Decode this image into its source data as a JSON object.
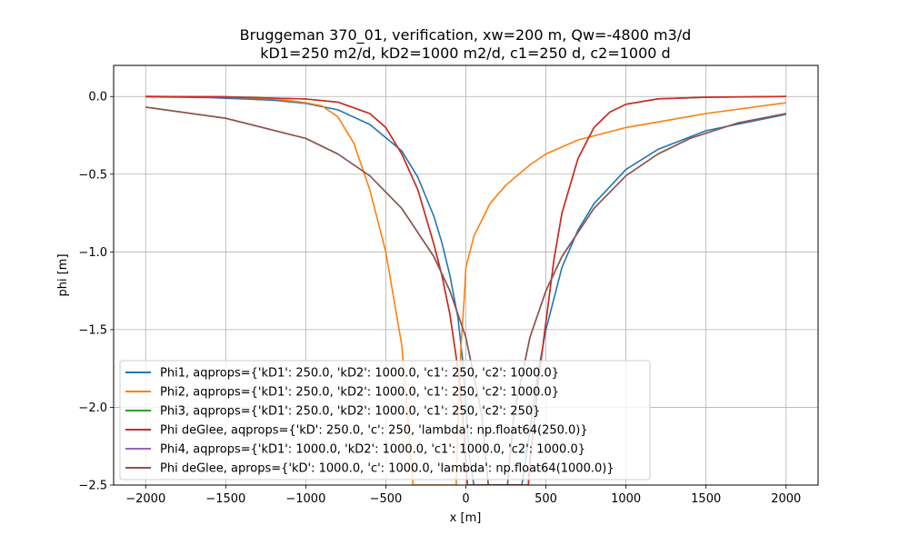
{
  "chart_data": {
    "type": "line",
    "title": "Bruggeman 370_01, verification, xw=200 m, Qw=-4800 m3/d",
    "subtitle": "kD1=250 m2/d, kD2=1000 m2/d, c1=250 d, c2=1000 d",
    "xlabel": "x [m]",
    "ylabel": "phi [m]",
    "xlim": [
      -2200,
      2200
    ],
    "ylim": [
      -2.5,
      0.2
    ],
    "xticks": [
      -2000,
      -1500,
      -1000,
      -500,
      0,
      500,
      1000,
      1500,
      2000
    ],
    "xtick_labels": [
      "−2000",
      "−1500",
      "−1000",
      "−500",
      "0",
      "500",
      "1000",
      "1500",
      "2000"
    ],
    "yticks": [
      0.0,
      -0.5,
      -1.0,
      -1.5,
      -2.0,
      -2.5
    ],
    "ytick_labels": [
      "0.0",
      "−0.5",
      "−1.0",
      "−1.5",
      "−2.0",
      "−2.5"
    ],
    "grid": true,
    "legend_position": "lower-left",
    "series": [
      {
        "name": "Phi1, aqprops={'kD1': 250.0, 'kD2': 1000.0, 'c1': 250, 'c2': 1000.0}",
        "color": "#1f77b4",
        "points": [
          [
            -2000,
            -0.002
          ],
          [
            -1600,
            -0.007
          ],
          [
            -1200,
            -0.024
          ],
          [
            -1000,
            -0.044
          ],
          [
            -800,
            -0.086
          ],
          [
            -600,
            -0.18
          ],
          [
            -400,
            -0.35
          ],
          [
            -300,
            -0.52
          ],
          [
            -200,
            -0.77
          ],
          [
            -150,
            -0.94
          ],
          [
            -100,
            -1.15
          ],
          [
            -50,
            -1.42
          ],
          [
            -20,
            -1.7
          ],
          [
            0,
            -1.98
          ],
          [
            20,
            -2.3
          ],
          [
            50,
            -2.5
          ],
          [
            350,
            -2.5
          ],
          [
            400,
            -2.15
          ],
          [
            450,
            -1.78
          ],
          [
            500,
            -1.5
          ],
          [
            600,
            -1.1
          ],
          [
            700,
            -0.86
          ],
          [
            800,
            -0.69
          ],
          [
            1000,
            -0.47
          ],
          [
            1200,
            -0.34
          ],
          [
            1500,
            -0.22
          ],
          [
            2000,
            -0.115
          ]
        ]
      },
      {
        "name": "Phi2, aqprops={'kD1': 250.0, 'kD2': 1000.0, 'c1': 250, 'c2': 1000.0}",
        "color": "#ff7f0e",
        "points": [
          [
            -2000,
            -0.0
          ],
          [
            -1500,
            -0.003
          ],
          [
            -1200,
            -0.015
          ],
          [
            -1000,
            -0.04
          ],
          [
            -900,
            -0.06
          ],
          [
            -800,
            -0.13
          ],
          [
            -700,
            -0.3
          ],
          [
            -600,
            -0.6
          ],
          [
            -500,
            -1.0
          ],
          [
            -400,
            -1.6
          ],
          [
            -360,
            -2.1
          ],
          [
            -330,
            -2.5
          ],
          [
            -60,
            -2.5
          ],
          [
            -50,
            -2.1
          ],
          [
            -30,
            -1.6
          ],
          [
            -10,
            -1.3
          ],
          [
            0,
            -1.1
          ],
          [
            50,
            -0.9
          ],
          [
            150,
            -0.69
          ],
          [
            250,
            -0.57
          ],
          [
            400,
            -0.44
          ],
          [
            500,
            -0.37
          ],
          [
            700,
            -0.28
          ],
          [
            1000,
            -0.2
          ],
          [
            1500,
            -0.11
          ],
          [
            2000,
            -0.04
          ]
        ]
      },
      {
        "name": "Phi3, aqprops={'kD1': 250.0, 'kD2': 1000.0, 'c1': 250, 'c2': 250}",
        "color": "#2ca02c",
        "points": [
          [
            -2000,
            -0.0
          ],
          [
            -1500,
            -0.002
          ],
          [
            -1000,
            -0.016
          ],
          [
            -800,
            -0.036
          ],
          [
            -600,
            -0.11
          ],
          [
            -500,
            -0.2
          ],
          [
            -400,
            -0.37
          ],
          [
            -300,
            -0.6
          ],
          [
            -200,
            -0.95
          ],
          [
            -150,
            -1.15
          ],
          [
            -100,
            -1.4
          ],
          [
            -50,
            -1.75
          ],
          [
            -20,
            -2.05
          ],
          [
            0,
            -2.35
          ],
          [
            10,
            -2.5
          ],
          [
            390,
            -2.5
          ],
          [
            400,
            -2.35
          ],
          [
            450,
            -1.85
          ],
          [
            500,
            -1.45
          ],
          [
            550,
            -1.05
          ],
          [
            600,
            -0.75
          ],
          [
            700,
            -0.4
          ],
          [
            800,
            -0.2
          ],
          [
            900,
            -0.1
          ],
          [
            1000,
            -0.05
          ],
          [
            1200,
            -0.015
          ],
          [
            1500,
            -0.005
          ],
          [
            2000,
            -0.0
          ]
        ]
      },
      {
        "name": "Phi deGlee, aqprops={'kD': 250.0, 'c': 250, 'lambda': np.float64(250.0)}",
        "color": "#d62728",
        "points": [
          [
            -2000,
            -0.0
          ],
          [
            -1500,
            -0.002
          ],
          [
            -1000,
            -0.016
          ],
          [
            -800,
            -0.036
          ],
          [
            -600,
            -0.11
          ],
          [
            -500,
            -0.2
          ],
          [
            -400,
            -0.37
          ],
          [
            -300,
            -0.6
          ],
          [
            -200,
            -0.95
          ],
          [
            -150,
            -1.15
          ],
          [
            -100,
            -1.4
          ],
          [
            -50,
            -1.75
          ],
          [
            -20,
            -2.05
          ],
          [
            0,
            -2.35
          ],
          [
            10,
            -2.5
          ],
          [
            390,
            -2.5
          ],
          [
            400,
            -2.35
          ],
          [
            450,
            -1.85
          ],
          [
            500,
            -1.45
          ],
          [
            550,
            -1.05
          ],
          [
            600,
            -0.75
          ],
          [
            700,
            -0.4
          ],
          [
            800,
            -0.2
          ],
          [
            900,
            -0.1
          ],
          [
            1000,
            -0.05
          ],
          [
            1200,
            -0.015
          ],
          [
            1500,
            -0.005
          ],
          [
            2000,
            -0.0
          ]
        ]
      },
      {
        "name": "Phi4, aqprops={'kD1': 1000.0, 'kD2': 1000.0, 'c1': 1000.0, 'c2': 1000.0}",
        "color": "#9467bd",
        "points": [
          [
            -2000,
            -0.068
          ],
          [
            -1500,
            -0.14
          ],
          [
            -1000,
            -0.27
          ],
          [
            -800,
            -0.37
          ],
          [
            -600,
            -0.51
          ],
          [
            -400,
            -0.72
          ],
          [
            -200,
            -1.03
          ],
          [
            -100,
            -1.25
          ],
          [
            0,
            -1.55
          ],
          [
            100,
            -2.05
          ],
          [
            140,
            -2.5
          ],
          [
            260,
            -2.5
          ],
          [
            300,
            -2.05
          ],
          [
            400,
            -1.55
          ],
          [
            500,
            -1.25
          ],
          [
            600,
            -1.03
          ],
          [
            800,
            -0.72
          ],
          [
            1000,
            -0.51
          ],
          [
            1200,
            -0.37
          ],
          [
            1400,
            -0.27
          ],
          [
            1700,
            -0.17
          ],
          [
            2000,
            -0.11
          ]
        ]
      },
      {
        "name": "Phi deGlee, aprops={'kD': 1000.0, 'c': 1000.0, 'lambda': np.float64(1000.0)}",
        "color": "#8c564b",
        "points": [
          [
            -2000,
            -0.068
          ],
          [
            -1500,
            -0.14
          ],
          [
            -1000,
            -0.27
          ],
          [
            -800,
            -0.37
          ],
          [
            -600,
            -0.51
          ],
          [
            -400,
            -0.72
          ],
          [
            -200,
            -1.03
          ],
          [
            -100,
            -1.25
          ],
          [
            0,
            -1.55
          ],
          [
            100,
            -2.05
          ],
          [
            140,
            -2.5
          ],
          [
            260,
            -2.5
          ],
          [
            300,
            -2.05
          ],
          [
            400,
            -1.55
          ],
          [
            500,
            -1.25
          ],
          [
            600,
            -1.03
          ],
          [
            800,
            -0.72
          ],
          [
            1000,
            -0.51
          ],
          [
            1200,
            -0.37
          ],
          [
            1400,
            -0.27
          ],
          [
            1700,
            -0.17
          ],
          [
            2000,
            -0.11
          ]
        ]
      }
    ]
  }
}
